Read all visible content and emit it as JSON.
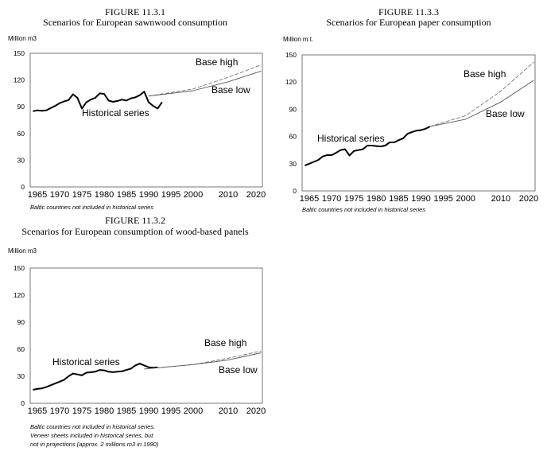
{
  "chart_data": [
    {
      "id": "f1",
      "type": "line",
      "figure_label": "FIGURE 11.3.1",
      "title": "Scenarios for European sawnwood consumption",
      "ylabel": "Million m3",
      "ylim": [
        0,
        150
      ],
      "yticks": [
        0,
        30,
        60,
        90,
        120,
        150
      ],
      "xticks": [
        1965,
        1970,
        1975,
        1980,
        1985,
        1990,
        1995,
        2000,
        2010,
        2020
      ],
      "note": [
        "Baltic countries not included in historical series"
      ],
      "series": [
        {
          "name": "Historical series",
          "style": "thick",
          "x": [
            1964,
            1965,
            1966,
            1967,
            1968,
            1969,
            1970,
            1971,
            1972,
            1973,
            1974,
            1975,
            1976,
            1977,
            1978,
            1979,
            1980,
            1981,
            1982,
            1983,
            1984,
            1985,
            1986,
            1987,
            1988,
            1989,
            1990,
            1991,
            1992,
            1993
          ],
          "y": [
            85,
            86,
            85.5,
            86,
            88.5,
            91,
            94,
            96,
            97.5,
            104,
            100,
            88,
            95,
            98,
            100,
            105,
            104.5,
            97,
            95.5,
            96.5,
            98,
            97,
            99.5,
            100.5,
            103,
            107,
            95,
            91,
            88,
            95
          ]
        },
        {
          "name": "Base high",
          "style": "dashed",
          "x": [
            1990,
            1995,
            2000,
            2010,
            2022
          ],
          "y": [
            102,
            106,
            110,
            123,
            137
          ]
        },
        {
          "name": "Base low",
          "style": "solid",
          "x": [
            1990,
            1995,
            2000,
            2010,
            2022
          ],
          "y": [
            102,
            105,
            108,
            118,
            130
          ]
        }
      ]
    },
    {
      "id": "f3",
      "type": "line",
      "figure_label": "FIGURE 11.3.3",
      "title": "Scenarios for European paper consumption",
      "ylabel": "Million  m.t.",
      "ylim": [
        0,
        150
      ],
      "yticks": [
        0,
        30,
        60,
        90,
        120,
        150
      ],
      "xticks": [
        1965,
        1970,
        1975,
        1980,
        1985,
        1990,
        1995,
        2000,
        2010,
        2020
      ],
      "note": [
        "Baltic countries not included in historical series"
      ],
      "series": [
        {
          "name": "Historical series",
          "style": "thick",
          "x": [
            1964,
            1965,
            1966,
            1967,
            1968,
            1969,
            1970,
            1971,
            1972,
            1973,
            1974,
            1975,
            1976,
            1977,
            1978,
            1979,
            1980,
            1981,
            1982,
            1983,
            1984,
            1985,
            1986,
            1987,
            1988,
            1989,
            1990,
            1991,
            1992
          ],
          "y": [
            28,
            30,
            32,
            34,
            38,
            39.5,
            39.5,
            42,
            45,
            46,
            39,
            44,
            45,
            46,
            50,
            50,
            49.5,
            49,
            50,
            53.5,
            53.5,
            56,
            58,
            63,
            65,
            66.5,
            67,
            68.5,
            71
          ]
        },
        {
          "name": "Base high",
          "style": "dashed",
          "x": [
            1992,
            2000,
            2010,
            2022
          ],
          "y": [
            71,
            83,
            110,
            142
          ]
        },
        {
          "name": "Base low",
          "style": "solid",
          "x": [
            1992,
            2000,
            2010,
            2022
          ],
          "y": [
            71,
            79,
            98,
            122
          ]
        }
      ]
    },
    {
      "id": "f2",
      "type": "line",
      "figure_label": "FIGURE 11.3.2",
      "title": "Scenarios for European consumption of wood-based panels",
      "ylabel": "Million m3",
      "ylim": [
        0,
        150
      ],
      "yticks": [
        0,
        30,
        60,
        90,
        120,
        150
      ],
      "xticks": [
        1965,
        1970,
        1975,
        1980,
        1985,
        1990,
        1995,
        2000,
        2010,
        2020
      ],
      "note": [
        "Baltic countries not included in historical series.",
        "Veneer sheets included in historical series, but",
        "not in projections (approx. 2 millions m3 in 1990)"
      ],
      "series": [
        {
          "name": "Historical series",
          "style": "thick",
          "x": [
            1964,
            1965,
            1966,
            1967,
            1968,
            1969,
            1970,
            1971,
            1972,
            1973,
            1974,
            1975,
            1976,
            1977,
            1978,
            1979,
            1980,
            1981,
            1982,
            1983,
            1984,
            1985,
            1986,
            1987,
            1988,
            1989,
            1990,
            1991,
            1992
          ],
          "y": [
            15,
            16,
            16.5,
            18,
            20,
            22,
            24,
            26,
            30,
            33,
            32,
            31,
            34,
            34.5,
            35,
            37,
            36.5,
            35,
            34.5,
            35,
            35.5,
            37,
            38.5,
            42,
            44,
            42,
            40,
            39.5,
            40
          ]
        },
        {
          "name": "Base high",
          "style": "dashed",
          "x": [
            1989,
            2000,
            2010,
            2022
          ],
          "y": [
            38,
            43,
            50,
            58
          ]
        },
        {
          "name": "Base low",
          "style": "solid",
          "x": [
            1989,
            2000,
            2010,
            2022
          ],
          "y": [
            38,
            43,
            48,
            56
          ]
        }
      ]
    }
  ]
}
